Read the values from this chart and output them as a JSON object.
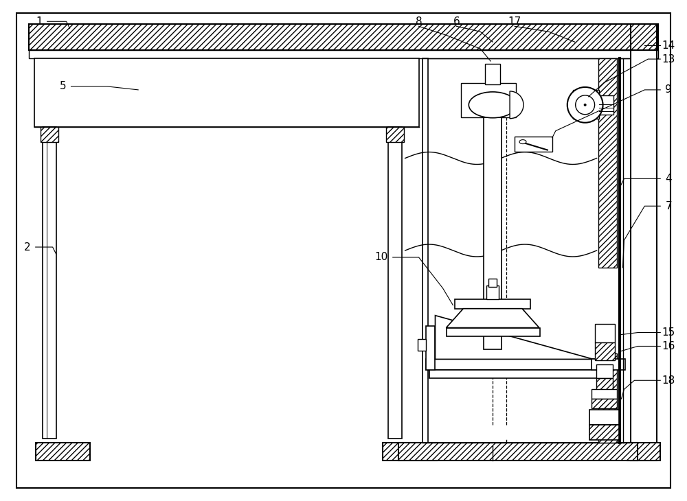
{
  "bg_color": "#ffffff",
  "line_color": "#000000",
  "fig_width": 10.0,
  "fig_height": 7.3,
  "dpi": 100
}
